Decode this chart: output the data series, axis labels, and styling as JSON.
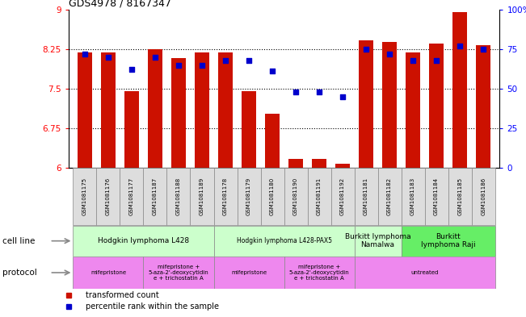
{
  "title": "GDS4978 / 8167347",
  "samples": [
    "GSM1081175",
    "GSM1081176",
    "GSM1081177",
    "GSM1081187",
    "GSM1081188",
    "GSM1081189",
    "GSM1081178",
    "GSM1081179",
    "GSM1081180",
    "GSM1081190",
    "GSM1081191",
    "GSM1081192",
    "GSM1081181",
    "GSM1081182",
    "GSM1081183",
    "GSM1081184",
    "GSM1081185",
    "GSM1081186"
  ],
  "transformed_count": [
    8.19,
    8.19,
    7.45,
    8.25,
    8.08,
    8.19,
    8.19,
    7.45,
    7.02,
    6.18,
    6.18,
    6.08,
    8.42,
    8.38,
    8.19,
    8.35,
    8.95,
    8.32
  ],
  "percentile_rank": [
    72,
    70,
    62,
    70,
    65,
    65,
    68,
    68,
    61,
    48,
    48,
    45,
    75,
    72,
    68,
    68,
    77,
    75
  ],
  "ylim_left": [
    6,
    9
  ],
  "ylim_right": [
    0,
    100
  ],
  "yticks_left": [
    6,
    6.75,
    7.5,
    8.25,
    9
  ],
  "yticks_right": [
    0,
    25,
    50,
    75,
    100
  ],
  "ytick_labels_left": [
    "6",
    "6.75",
    "7.5",
    "8.25",
    "9"
  ],
  "ytick_labels_right": [
    "0",
    "25",
    "50",
    "75",
    "100%"
  ],
  "bar_color": "#cc1100",
  "dot_color": "#0000cc",
  "cell_line_groups": [
    {
      "label": "Hodgkin lymphoma L428",
      "start": 0,
      "end": 5,
      "color": "#ccffcc"
    },
    {
      "label": "Hodgkin lymphoma L428-PAX5",
      "start": 6,
      "end": 11,
      "color": "#ccffcc"
    },
    {
      "label": "Burkitt lymphoma\nNamalwa",
      "start": 12,
      "end": 13,
      "color": "#ccffcc"
    },
    {
      "label": "Burkitt\nlymphoma Raji",
      "start": 14,
      "end": 17,
      "color": "#66ee66"
    }
  ],
  "protocol_groups": [
    {
      "label": "mifepristone",
      "start": 0,
      "end": 2,
      "color": "#ee88ee"
    },
    {
      "label": "mifepristone +\n5-aza-2'-deoxycytidin\ne + trichostatin A",
      "start": 3,
      "end": 5,
      "color": "#ee88ee"
    },
    {
      "label": "mifepristone",
      "start": 6,
      "end": 8,
      "color": "#ee88ee"
    },
    {
      "label": "mifepristone +\n5-aza-2'-deoxycytidin\ne + trichostatin A",
      "start": 9,
      "end": 11,
      "color": "#ee88ee"
    },
    {
      "label": "untreated",
      "start": 12,
      "end": 17,
      "color": "#ee88ee"
    }
  ]
}
